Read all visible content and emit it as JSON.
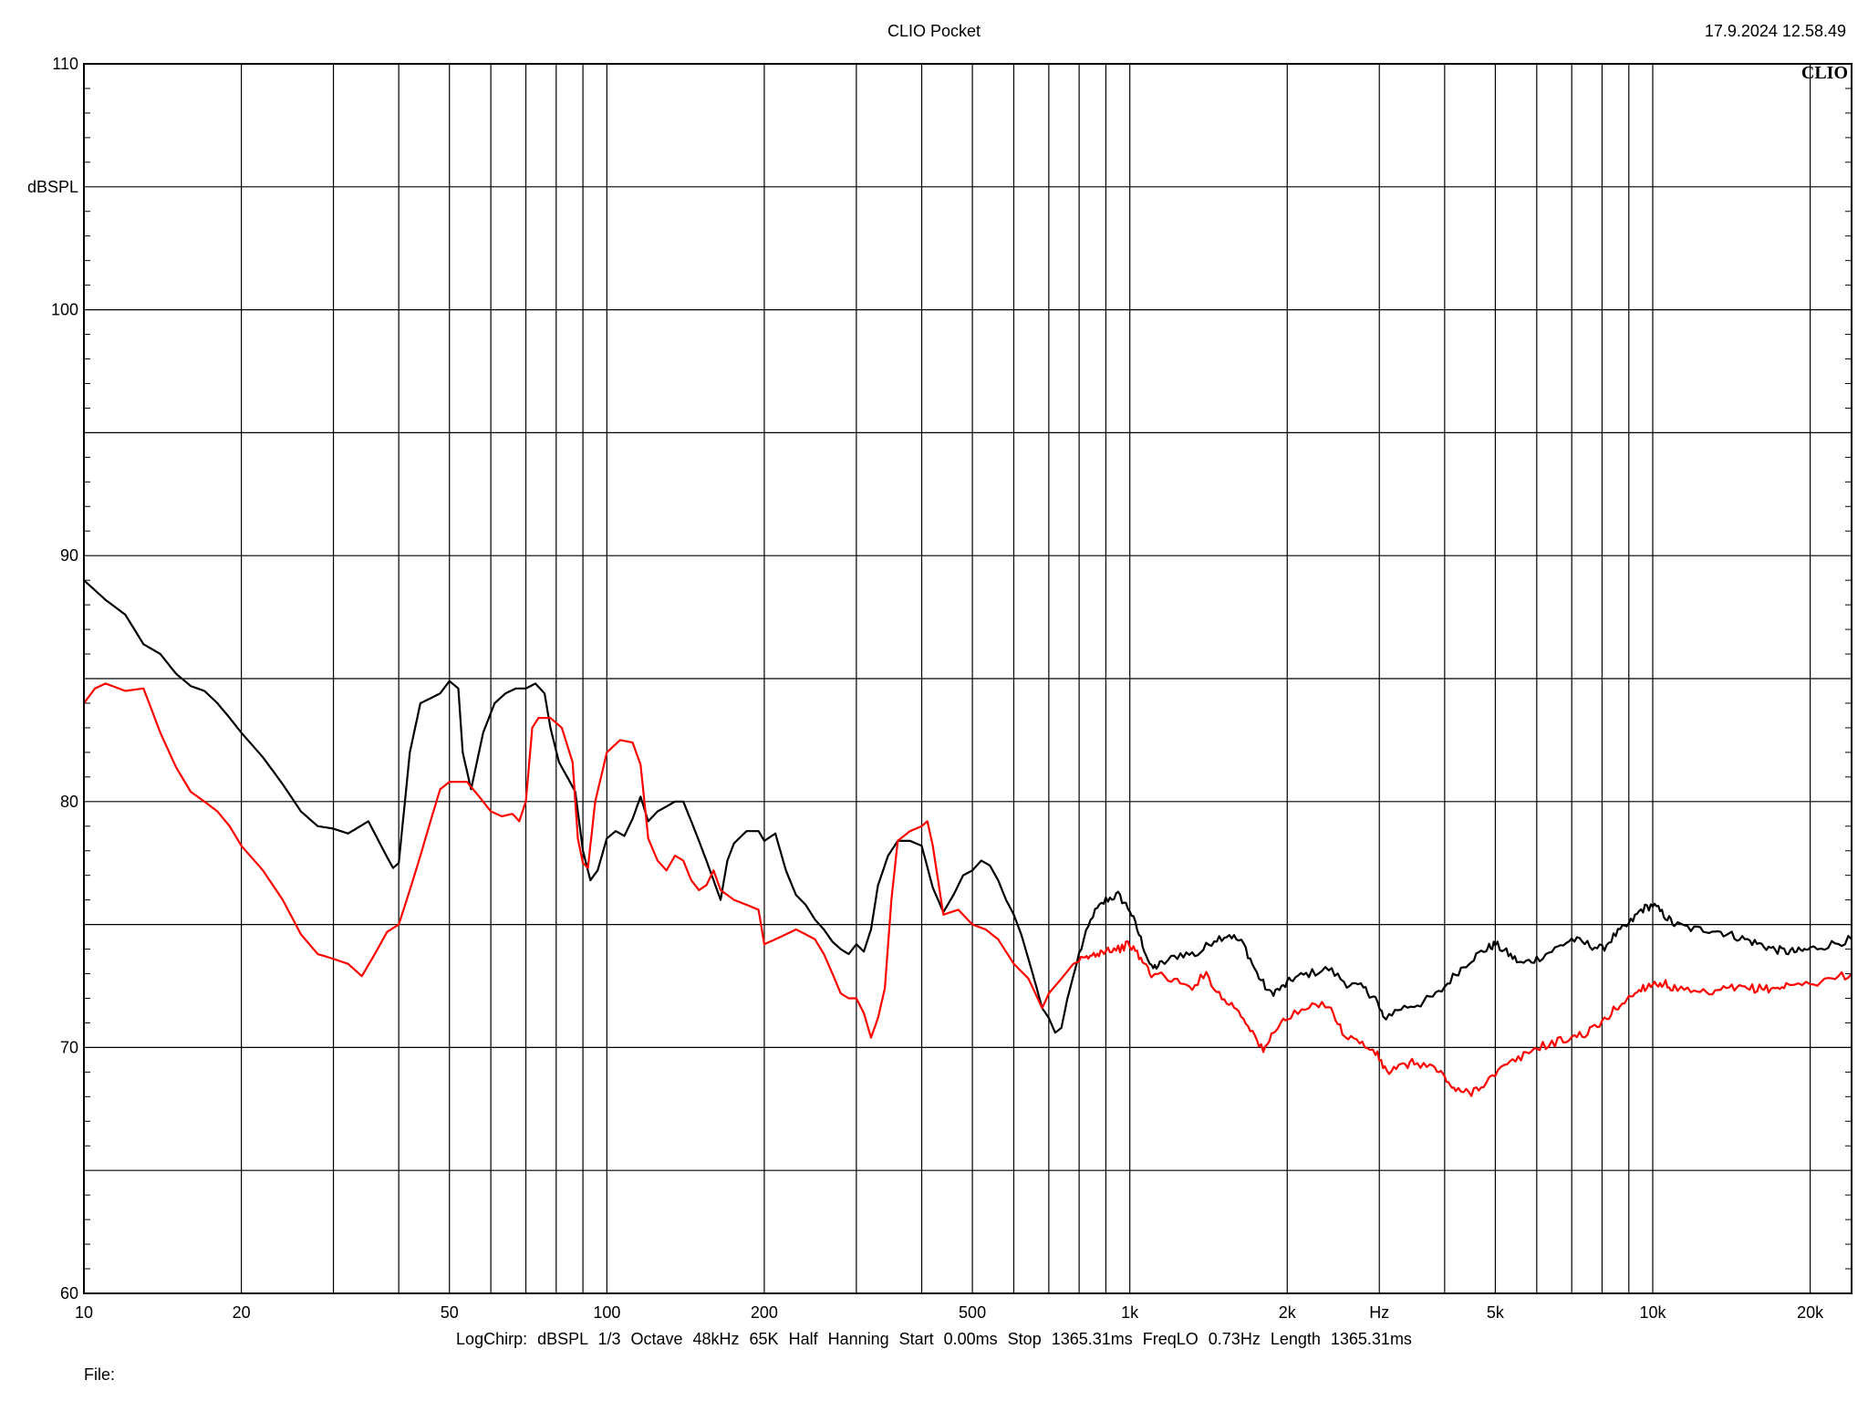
{
  "header": {
    "title": "CLIO Pocket",
    "timestamp": "17.9.2024 12.58.49"
  },
  "footer": {
    "params": "LogChirp:  dBSPL   1/3 Octave   48kHz   65K   Half Hanning   Start 0.00ms   Stop 1365.31ms   FreqLO 0.73Hz   Length 1365.31ms",
    "file_label": "File:"
  },
  "logo": "CLIO",
  "chart_data": {
    "type": "line",
    "title": "CLIO Pocket",
    "xlabel": "Hz",
    "ylabel": "dBSPL",
    "x_scale": "log",
    "xlim": [
      10,
      24000
    ],
    "ylim": [
      60,
      110
    ],
    "grid": true,
    "x_ticks": [
      {
        "value": 10,
        "label": "10"
      },
      {
        "value": 20,
        "label": "20"
      },
      {
        "value": 50,
        "label": "50"
      },
      {
        "value": 100,
        "label": "100"
      },
      {
        "value": 200,
        "label": "200"
      },
      {
        "value": 500,
        "label": "500"
      },
      {
        "value": 1000,
        "label": "1k"
      },
      {
        "value": 2000,
        "label": "2k"
      },
      {
        "value": 5000,
        "label": "5k"
      },
      {
        "value": 10000,
        "label": "10k"
      },
      {
        "value": 20000,
        "label": "20k"
      }
    ],
    "x_unit_label": {
      "value": 3000,
      "label": "Hz"
    },
    "y_ticks": [
      {
        "value": 60,
        "label": "60"
      },
      {
        "value": 70,
        "label": "70"
      },
      {
        "value": 80,
        "label": "80"
      },
      {
        "value": 90,
        "label": "90"
      },
      {
        "value": 100,
        "label": "100"
      },
      {
        "value": 110,
        "label": "110"
      }
    ],
    "series": [
      {
        "color": "#000000",
        "points": [
          [
            10,
            89.0
          ],
          [
            11,
            88.2
          ],
          [
            12,
            87.6
          ],
          [
            13,
            86.4
          ],
          [
            14,
            86.0
          ],
          [
            15,
            85.2
          ],
          [
            16,
            84.7
          ],
          [
            17,
            84.5
          ],
          [
            18,
            84.0
          ],
          [
            19,
            83.4
          ],
          [
            20,
            82.8
          ],
          [
            22,
            81.8
          ],
          [
            24,
            80.7
          ],
          [
            26,
            79.6
          ],
          [
            28,
            79.0
          ],
          [
            30,
            78.9
          ],
          [
            32,
            78.7
          ],
          [
            35,
            79.2
          ],
          [
            37,
            78.2
          ],
          [
            39,
            77.3
          ],
          [
            40,
            77.5
          ],
          [
            42,
            82.0
          ],
          [
            44,
            84.0
          ],
          [
            46,
            84.2
          ],
          [
            48,
            84.4
          ],
          [
            50,
            84.9
          ],
          [
            52,
            84.6
          ],
          [
            53,
            82.0
          ],
          [
            55,
            80.5
          ],
          [
            58,
            82.8
          ],
          [
            61,
            84.0
          ],
          [
            64,
            84.4
          ],
          [
            67,
            84.6
          ],
          [
            70,
            84.6
          ],
          [
            73,
            84.8
          ],
          [
            76,
            84.4
          ],
          [
            78,
            83.0
          ],
          [
            81,
            81.6
          ],
          [
            84,
            81.0
          ],
          [
            87,
            80.4
          ],
          [
            90,
            78.0
          ],
          [
            93,
            76.8
          ],
          [
            96,
            77.2
          ],
          [
            100,
            78.5
          ],
          [
            104,
            78.8
          ],
          [
            108,
            78.6
          ],
          [
            112,
            79.3
          ],
          [
            116,
            80.2
          ],
          [
            120,
            79.2
          ],
          [
            125,
            79.6
          ],
          [
            130,
            79.8
          ],
          [
            135,
            80.0
          ],
          [
            140,
            80.0
          ],
          [
            145,
            79.2
          ],
          [
            150,
            78.4
          ],
          [
            155,
            77.6
          ],
          [
            160,
            76.8
          ],
          [
            165,
            76.0
          ],
          [
            170,
            77.6
          ],
          [
            175,
            78.3
          ],
          [
            185,
            78.8
          ],
          [
            195,
            78.8
          ],
          [
            200,
            78.4
          ],
          [
            210,
            78.7
          ],
          [
            220,
            77.2
          ],
          [
            230,
            76.2
          ],
          [
            240,
            75.8
          ],
          [
            250,
            75.2
          ],
          [
            260,
            74.8
          ],
          [
            270,
            74.3
          ],
          [
            280,
            74.0
          ],
          [
            290,
            73.8
          ],
          [
            300,
            74.2
          ],
          [
            310,
            73.9
          ],
          [
            320,
            74.8
          ],
          [
            330,
            76.6
          ],
          [
            345,
            77.8
          ],
          [
            360,
            78.4
          ],
          [
            380,
            78.4
          ],
          [
            400,
            78.2
          ],
          [
            420,
            76.5
          ],
          [
            440,
            75.5
          ],
          [
            460,
            76.2
          ],
          [
            480,
            77.0
          ],
          [
            500,
            77.2
          ],
          [
            520,
            77.6
          ],
          [
            540,
            77.4
          ],
          [
            560,
            76.8
          ],
          [
            580,
            76.0
          ],
          [
            600,
            75.4
          ],
          [
            620,
            74.6
          ],
          [
            640,
            73.6
          ],
          [
            660,
            72.6
          ],
          [
            680,
            71.6
          ],
          [
            700,
            71.2
          ],
          [
            720,
            70.6
          ],
          [
            740,
            70.8
          ],
          [
            760,
            72.0
          ],
          [
            800,
            73.8
          ],
          [
            850,
            75.4
          ],
          [
            900,
            76.0
          ],
          [
            950,
            76.2
          ],
          [
            1000,
            75.6
          ],
          [
            1050,
            74.4
          ],
          [
            1100,
            73.2
          ],
          [
            1150,
            73.4
          ],
          [
            1250,
            73.8
          ],
          [
            1350,
            73.8
          ],
          [
            1450,
            74.4
          ],
          [
            1550,
            74.6
          ],
          [
            1650,
            74.2
          ],
          [
            1750,
            73.0
          ],
          [
            1850,
            72.2
          ],
          [
            1950,
            72.4
          ],
          [
            2050,
            72.8
          ],
          [
            2200,
            73.0
          ],
          [
            2400,
            73.2
          ],
          [
            2600,
            72.6
          ],
          [
            2800,
            72.4
          ],
          [
            2950,
            72.0
          ],
          [
            3050,
            71.2
          ],
          [
            3300,
            71.6
          ],
          [
            3600,
            71.8
          ],
          [
            3900,
            72.2
          ],
          [
            4200,
            73.0
          ],
          [
            4500,
            73.6
          ],
          [
            4800,
            74.0
          ],
          [
            5000,
            74.2
          ],
          [
            5300,
            73.8
          ],
          [
            5600,
            73.4
          ],
          [
            6000,
            73.6
          ],
          [
            6500,
            74.0
          ],
          [
            7000,
            74.4
          ],
          [
            7500,
            74.2
          ],
          [
            8000,
            74.0
          ],
          [
            8500,
            74.6
          ],
          [
            9000,
            75.0
          ],
          [
            9500,
            75.6
          ],
          [
            10000,
            75.8
          ],
          [
            10500,
            75.4
          ],
          [
            11000,
            75.0
          ],
          [
            12000,
            74.8
          ],
          [
            13000,
            74.8
          ],
          [
            14000,
            74.6
          ],
          [
            15000,
            74.4
          ],
          [
            16000,
            74.2
          ],
          [
            17000,
            74.0
          ],
          [
            18000,
            73.9
          ],
          [
            19000,
            73.9
          ],
          [
            20000,
            74.0
          ],
          [
            22000,
            74.2
          ],
          [
            24000,
            74.4
          ]
        ]
      },
      {
        "color": "#ff0000",
        "points": [
          [
            10,
            84.0
          ],
          [
            10.5,
            84.6
          ],
          [
            11,
            84.8
          ],
          [
            12,
            84.5
          ],
          [
            13,
            84.6
          ],
          [
            14,
            82.8
          ],
          [
            15,
            81.4
          ],
          [
            16,
            80.4
          ],
          [
            17,
            80.0
          ],
          [
            18,
            79.6
          ],
          [
            19,
            79.0
          ],
          [
            20,
            78.2
          ],
          [
            22,
            77.2
          ],
          [
            24,
            76.0
          ],
          [
            26,
            74.6
          ],
          [
            28,
            73.8
          ],
          [
            30,
            73.6
          ],
          [
            32,
            73.4
          ],
          [
            34,
            72.9
          ],
          [
            36,
            73.8
          ],
          [
            38,
            74.7
          ],
          [
            40,
            75.0
          ],
          [
            42,
            76.4
          ],
          [
            44,
            77.8
          ],
          [
            46,
            79.2
          ],
          [
            48,
            80.5
          ],
          [
            50,
            80.8
          ],
          [
            52,
            80.8
          ],
          [
            54,
            80.8
          ],
          [
            57,
            80.2
          ],
          [
            60,
            79.6
          ],
          [
            63,
            79.4
          ],
          [
            66,
            79.5
          ],
          [
            68,
            79.2
          ],
          [
            70,
            80.0
          ],
          [
            72,
            83.0
          ],
          [
            74,
            83.4
          ],
          [
            78,
            83.4
          ],
          [
            82,
            83.0
          ],
          [
            86,
            81.6
          ],
          [
            88,
            78.5
          ],
          [
            90,
            77.5
          ],
          [
            92,
            77.3
          ],
          [
            95,
            80.0
          ],
          [
            100,
            82.0
          ],
          [
            106,
            82.5
          ],
          [
            112,
            82.4
          ],
          [
            116,
            81.5
          ],
          [
            120,
            78.5
          ],
          [
            125,
            77.6
          ],
          [
            130,
            77.2
          ],
          [
            135,
            77.8
          ],
          [
            140,
            77.6
          ],
          [
            145,
            76.8
          ],
          [
            150,
            76.4
          ],
          [
            155,
            76.6
          ],
          [
            160,
            77.2
          ],
          [
            165,
            76.4
          ],
          [
            175,
            76.0
          ],
          [
            185,
            75.8
          ],
          [
            195,
            75.6
          ],
          [
            200,
            74.2
          ],
          [
            210,
            74.4
          ],
          [
            220,
            74.6
          ],
          [
            230,
            74.8
          ],
          [
            240,
            74.6
          ],
          [
            250,
            74.4
          ],
          [
            260,
            73.8
          ],
          [
            270,
            73.0
          ],
          [
            280,
            72.2
          ],
          [
            290,
            72.0
          ],
          [
            300,
            72.0
          ],
          [
            310,
            71.4
          ],
          [
            320,
            70.4
          ],
          [
            330,
            71.2
          ],
          [
            340,
            72.4
          ],
          [
            350,
            76.0
          ],
          [
            360,
            78.4
          ],
          [
            380,
            78.8
          ],
          [
            400,
            79.0
          ],
          [
            410,
            79.2
          ],
          [
            420,
            78.2
          ],
          [
            440,
            75.4
          ],
          [
            470,
            75.6
          ],
          [
            500,
            75.0
          ],
          [
            530,
            74.8
          ],
          [
            560,
            74.4
          ],
          [
            600,
            73.4
          ],
          [
            640,
            72.8
          ],
          [
            680,
            71.6
          ],
          [
            700,
            72.2
          ],
          [
            740,
            72.8
          ],
          [
            780,
            73.4
          ],
          [
            820,
            73.6
          ],
          [
            860,
            73.8
          ],
          [
            900,
            74.0
          ],
          [
            950,
            74.0
          ],
          [
            1000,
            74.2
          ],
          [
            1050,
            73.6
          ],
          [
            1100,
            73.0
          ],
          [
            1200,
            72.8
          ],
          [
            1300,
            72.4
          ],
          [
            1400,
            73.0
          ],
          [
            1500,
            72.0
          ],
          [
            1600,
            71.6
          ],
          [
            1700,
            70.8
          ],
          [
            1800,
            69.8
          ],
          [
            1900,
            70.8
          ],
          [
            2000,
            71.2
          ],
          [
            2200,
            71.6
          ],
          [
            2400,
            71.8
          ],
          [
            2550,
            70.6
          ],
          [
            2750,
            70.2
          ],
          [
            2950,
            69.8
          ],
          [
            3100,
            69.0
          ],
          [
            3300,
            69.2
          ],
          [
            3500,
            69.4
          ],
          [
            3800,
            69.2
          ],
          [
            4000,
            68.8
          ],
          [
            4200,
            68.2
          ],
          [
            4500,
            68.2
          ],
          [
            4800,
            68.6
          ],
          [
            5200,
            69.2
          ],
          [
            5600,
            69.6
          ],
          [
            6000,
            70.0
          ],
          [
            6500,
            70.2
          ],
          [
            7000,
            70.4
          ],
          [
            7500,
            70.6
          ],
          [
            8000,
            71.0
          ],
          [
            8500,
            71.6
          ],
          [
            9000,
            72.0
          ],
          [
            9500,
            72.4
          ],
          [
            10000,
            72.6
          ],
          [
            10500,
            72.6
          ],
          [
            11000,
            72.4
          ],
          [
            12000,
            72.2
          ],
          [
            13000,
            72.2
          ],
          [
            14000,
            72.4
          ],
          [
            15000,
            72.4
          ],
          [
            16000,
            72.4
          ],
          [
            17000,
            72.4
          ],
          [
            18000,
            72.5
          ],
          [
            20000,
            72.6
          ],
          [
            22000,
            72.8
          ],
          [
            24000,
            73.0
          ]
        ]
      }
    ]
  }
}
